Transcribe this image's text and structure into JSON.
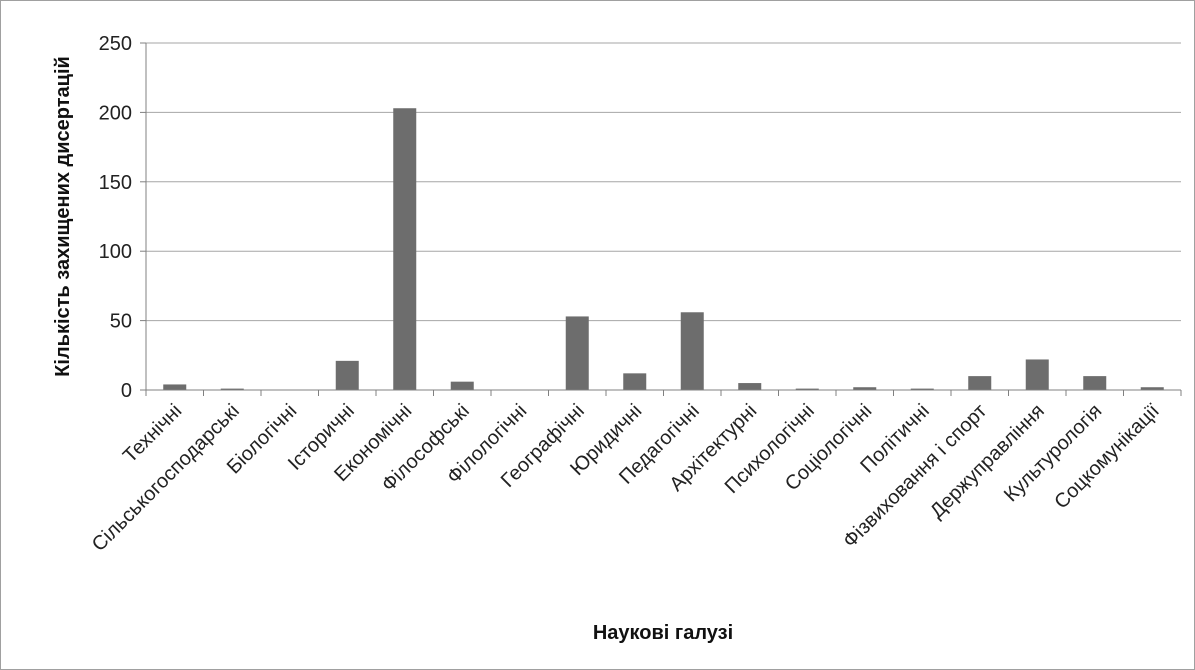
{
  "chart_data": {
    "type": "bar",
    "title": "",
    "xlabel": "Наукові галузі",
    "ylabel": "Кількість захищених дисертацій",
    "categories": [
      "Технічні",
      "Сільськогосподарські",
      "Біологічні",
      "Історичні",
      "Економічні",
      "Філософські",
      "Філологічні",
      "Географічні",
      "Юридичні",
      "Педагогічні",
      "Архітектурні",
      "Психологічні",
      "Соціологічні",
      "Політичні",
      "Фізвиховання і спорт",
      "Держуправління",
      "Культурологія",
      "Соцкомунікації"
    ],
    "values": [
      4,
      1,
      0,
      21,
      203,
      6,
      0,
      53,
      12,
      56,
      5,
      1,
      2,
      1,
      10,
      22,
      10,
      2
    ],
    "ylim": [
      0,
      250
    ],
    "yticks": [
      0,
      50,
      100,
      150,
      200,
      250
    ],
    "grid": true,
    "legend": "none",
    "bar_color": "#6d6d6d",
    "grid_color": "#a6a6a6",
    "axis_color": "#808080"
  }
}
